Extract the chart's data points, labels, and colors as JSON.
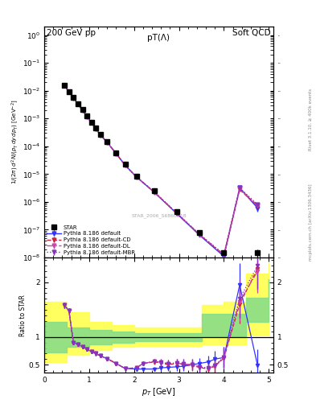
{
  "title_left": "200 GeV pp",
  "title_right": "Soft QCD",
  "plot_title": "pT(Λ)",
  "watermark": "STAR_2006_S6860818",
  "ylabel_main": "1/(2π) d²N/(p_T dy dp_T) [GeV⁻²]",
  "ylabel_ratio": "Ratio to STAR",
  "xlabel": "p_T [GeV]",
  "right_label": "Rivet 3.1.10, ≥ 400k events",
  "right_label2": "mcplots.cern.ch [arXiv:1306.3436]",
  "star_pt": [
    0.45,
    0.55,
    0.65,
    0.75,
    0.85,
    0.95,
    1.05,
    1.15,
    1.25,
    1.4,
    1.6,
    1.8,
    2.05,
    2.45,
    2.95,
    3.45,
    4.0,
    4.75
  ],
  "star_y": [
    0.016,
    0.0095,
    0.0058,
    0.0035,
    0.0021,
    0.00125,
    0.00075,
    0.00045,
    0.00027,
    0.00015,
    5.8e-05,
    2.3e-05,
    8.5e-06,
    2.5e-06,
    4.5e-07,
    8e-08,
    1.5e-08,
    1.5e-08
  ],
  "star_yerr": [
    0.0004,
    0.0002,
    0.00015,
    9e-05,
    5e-05,
    3e-05,
    1.8e-05,
    1.1e-05,
    7e-06,
    4e-06,
    1.5e-06,
    6e-07,
    2e-07,
    7e-08,
    1.5e-08,
    3e-09,
    6e-10,
    5e-09
  ],
  "mc_pt": [
    0.45,
    0.55,
    0.65,
    0.75,
    0.85,
    0.95,
    1.05,
    1.15,
    1.25,
    1.4,
    1.6,
    1.8,
    2.05,
    2.45,
    2.95,
    3.45,
    4.0,
    4.35,
    4.75
  ],
  "def_y": [
    0.0155,
    0.009,
    0.0055,
    0.0033,
    0.002,
    0.0012,
    0.00072,
    0.00043,
    0.000255,
    0.00014,
    5.5e-05,
    2.1e-05,
    8e-06,
    2.2e-06,
    3.8e-07,
    6.5e-08,
    1.1e-08,
    3.2e-06,
    6e-07
  ],
  "def_yerr": [
    0.0003,
    0.00015,
    0.0001,
    6e-05,
    4e-05,
    2.5e-05,
    1.5e-05,
    9e-06,
    5e-06,
    3e-06,
    1e-06,
    4e-07,
    1.5e-07,
    4e-08,
    8e-09,
    1.5e-09,
    3e-10,
    6e-07,
    1.5e-07
  ],
  "cd_y": [
    0.0155,
    0.009,
    0.0055,
    0.0033,
    0.002,
    0.0012,
    0.00072,
    0.00043,
    0.000255,
    0.00014,
    5.5e-05,
    2.1e-05,
    8e-06,
    2.25e-06,
    3.9e-07,
    6.8e-08,
    1.2e-08,
    2.8e-06,
    7e-07
  ],
  "cd_yerr": [
    0.0003,
    0.00015,
    0.0001,
    6e-05,
    4e-05,
    2.5e-05,
    1.5e-05,
    9e-06,
    5e-06,
    3e-06,
    1e-06,
    4e-07,
    1.5e-07,
    4e-08,
    8e-09,
    1.5e-09,
    3e-10,
    5e-07,
    1.3e-07
  ],
  "dl_y": [
    0.0155,
    0.009,
    0.0055,
    0.0033,
    0.002,
    0.0012,
    0.00072,
    0.00043,
    0.000255,
    0.00014,
    5.5e-05,
    2.1e-05,
    8e-06,
    2.27e-06,
    3.95e-07,
    6.9e-08,
    1.25e-08,
    3e-06,
    7.5e-07
  ],
  "dl_yerr": [
    0.0003,
    0.00015,
    0.0001,
    6e-05,
    4e-05,
    2.5e-05,
    1.5e-05,
    9e-06,
    5e-06,
    3e-06,
    1e-06,
    4e-07,
    1.5e-07,
    4e-08,
    8e-09,
    1.5e-09,
    3e-10,
    5.5e-07,
    1.4e-07
  ],
  "mbr_y": [
    0.0155,
    0.009,
    0.0055,
    0.0033,
    0.002,
    0.0012,
    0.00072,
    0.00043,
    0.000255,
    0.00014,
    5.5e-05,
    2.1e-05,
    8e-06,
    2.3e-06,
    4e-07,
    7e-08,
    1.3e-08,
    3.2e-06,
    8e-07
  ],
  "mbr_yerr": [
    0.0003,
    0.00015,
    0.0001,
    6e-05,
    4e-05,
    2.5e-05,
    1.5e-05,
    9e-06,
    5e-06,
    3e-06,
    1e-06,
    4e-07,
    1.5e-07,
    4e-08,
    8e-09,
    1.5e-09,
    3e-10,
    6e-07,
    1.5e-07
  ],
  "ratio_pt": [
    0.45,
    0.55,
    0.65,
    0.75,
    0.85,
    0.95,
    1.05,
    1.15,
    1.25,
    1.4,
    1.6,
    1.8,
    2.05,
    2.2,
    2.45,
    2.6,
    2.75,
    2.95,
    3.1,
    3.3,
    3.45,
    3.65,
    3.8,
    4.0,
    4.35,
    4.75
  ],
  "ratio_def_y": [
    1.58,
    1.48,
    0.9,
    0.87,
    0.83,
    0.78,
    0.74,
    0.7,
    0.66,
    0.61,
    0.52,
    0.43,
    0.42,
    0.42,
    0.42,
    0.44,
    0.45,
    0.46,
    0.47,
    0.5,
    0.52,
    0.55,
    0.6,
    0.63,
    1.95,
    0.48
  ],
  "ratio_def_err": [
    0.05,
    0.04,
    0.03,
    0.03,
    0.03,
    0.03,
    0.03,
    0.03,
    0.03,
    0.03,
    0.02,
    0.02,
    0.03,
    0.03,
    0.04,
    0.05,
    0.06,
    0.07,
    0.08,
    0.09,
    0.1,
    0.12,
    0.15,
    0.2,
    0.4,
    0.3
  ],
  "ratio_cd_y": [
    1.58,
    1.48,
    0.9,
    0.87,
    0.83,
    0.78,
    0.74,
    0.7,
    0.66,
    0.61,
    0.52,
    0.43,
    0.44,
    0.52,
    0.55,
    0.53,
    0.5,
    0.52,
    0.5,
    0.48,
    0.45,
    0.42,
    0.47,
    0.62,
    1.6,
    2.25
  ],
  "ratio_cd_err": [
    0.05,
    0.04,
    0.03,
    0.03,
    0.03,
    0.03,
    0.03,
    0.03,
    0.03,
    0.03,
    0.02,
    0.02,
    0.03,
    0.04,
    0.05,
    0.06,
    0.07,
    0.08,
    0.09,
    0.1,
    0.1,
    0.12,
    0.15,
    0.18,
    0.35,
    0.4
  ],
  "ratio_dl_y": [
    1.58,
    1.48,
    0.9,
    0.87,
    0.83,
    0.78,
    0.74,
    0.7,
    0.66,
    0.61,
    0.52,
    0.43,
    0.44,
    0.52,
    0.56,
    0.54,
    0.52,
    0.53,
    0.51,
    0.5,
    0.46,
    0.43,
    0.48,
    0.63,
    1.65,
    2.2
  ],
  "ratio_dl_err": [
    0.05,
    0.04,
    0.03,
    0.03,
    0.03,
    0.03,
    0.03,
    0.03,
    0.03,
    0.03,
    0.02,
    0.02,
    0.03,
    0.04,
    0.05,
    0.06,
    0.07,
    0.08,
    0.09,
    0.1,
    0.1,
    0.12,
    0.15,
    0.18,
    0.35,
    0.4
  ],
  "ratio_mbr_y": [
    1.58,
    1.48,
    0.9,
    0.87,
    0.83,
    0.78,
    0.74,
    0.7,
    0.66,
    0.61,
    0.52,
    0.43,
    0.44,
    0.52,
    0.56,
    0.54,
    0.52,
    0.53,
    0.51,
    0.5,
    0.46,
    0.44,
    0.49,
    0.64,
    1.7,
    2.3
  ],
  "ratio_mbr_err": [
    0.05,
    0.04,
    0.03,
    0.03,
    0.03,
    0.03,
    0.03,
    0.03,
    0.03,
    0.03,
    0.02,
    0.02,
    0.03,
    0.04,
    0.05,
    0.06,
    0.07,
    0.08,
    0.09,
    0.1,
    0.1,
    0.12,
    0.15,
    0.18,
    0.35,
    0.42
  ],
  "band_yellow_edges": [
    0.0,
    0.5,
    1.0,
    1.5,
    2.0,
    2.5,
    3.0,
    3.5,
    4.0,
    4.5,
    5.0
  ],
  "band_yellow_lo": [
    0.55,
    0.68,
    0.77,
    0.82,
    0.84,
    0.84,
    0.84,
    0.87,
    0.87,
    1.05,
    1.25
  ],
  "band_yellow_hi": [
    1.65,
    1.45,
    1.28,
    1.22,
    1.18,
    1.18,
    1.18,
    1.58,
    1.65,
    2.15,
    2.35
  ],
  "band_green_edges": [
    0.0,
    0.5,
    1.0,
    1.5,
    2.0,
    2.5,
    3.0,
    3.5,
    4.0,
    4.5,
    5.0
  ],
  "band_green_lo": [
    0.72,
    0.82,
    0.87,
    0.9,
    0.92,
    0.92,
    0.92,
    1.02,
    1.02,
    1.28,
    1.52
  ],
  "band_green_hi": [
    1.28,
    1.18,
    1.13,
    1.1,
    1.08,
    1.08,
    1.08,
    1.42,
    1.42,
    1.72,
    2.05
  ],
  "color_def": "#3333ff",
  "color_cd": "#cc2244",
  "color_dl": "#cc44aa",
  "color_mbr": "#8833bb",
  "color_star": "#000000",
  "xlim": [
    0,
    5.1
  ],
  "ylim_main": [
    1e-08,
    2.0
  ],
  "ylim_ratio": [
    0.35,
    2.45
  ],
  "yticks_ratio": [
    0.5,
    1.0,
    2.0
  ],
  "yticklabels_ratio": [
    "0.5",
    "1",
    "2"
  ]
}
